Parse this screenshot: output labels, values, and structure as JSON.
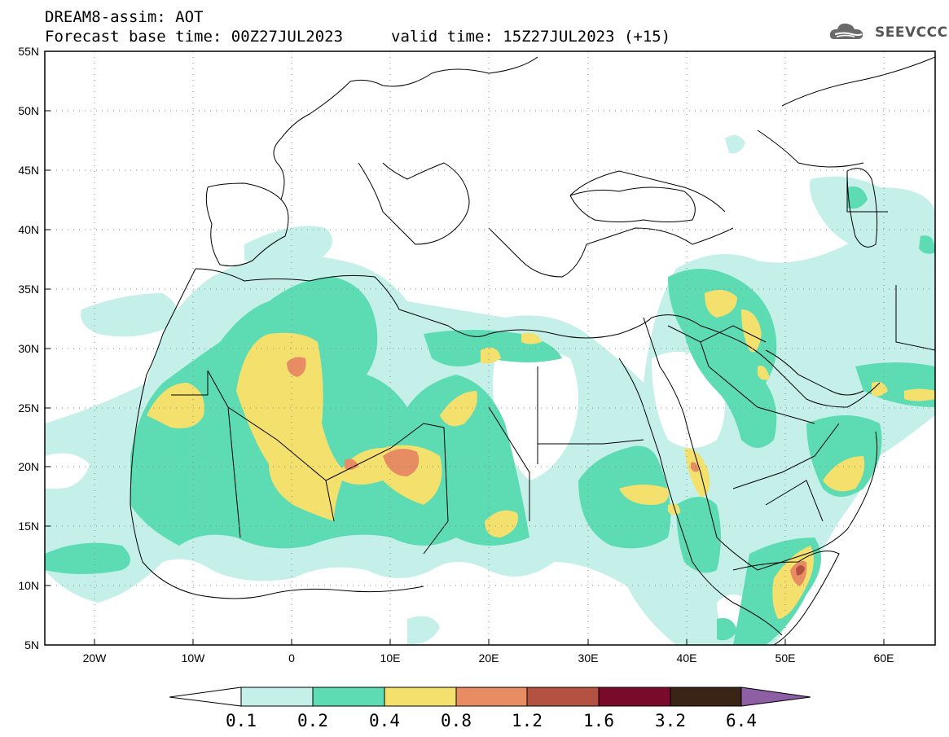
{
  "header": {
    "title": "DREAM8-assim: AOT",
    "base_time": "Forecast base time: 00Z27JUL2023",
    "valid_time": "valid time: 15Z27JUL2023 (+15)"
  },
  "logo": {
    "text": "SEEVCCC",
    "icon": "cloud-logo-icon"
  },
  "map": {
    "lat_labels": [
      "55N",
      "50N",
      "45N",
      "40N",
      "35N",
      "30N",
      "25N",
      "20N",
      "15N",
      "10N",
      "5N"
    ],
    "lon_labels": [
      "20W",
      "10W",
      "0",
      "10E",
      "20E",
      "30E",
      "40E",
      "50E",
      "60E"
    ],
    "lat_range": [
      5,
      55
    ],
    "lon_range": [
      -25,
      65
    ],
    "projection": "lat-lon",
    "grid": "dotted"
  },
  "colorbar": {
    "labels": [
      "0.1",
      "0.2",
      "0.4",
      "0.8",
      "1.2",
      "1.6",
      "3.2",
      "6.4"
    ],
    "colors": [
      "#ffffff",
      "#c5f0ea",
      "#5ddcb3",
      "#f4e06d",
      "#e88d63",
      "#b35240",
      "#7a0a2a",
      "#3a2416",
      "#8e5fa5"
    ]
  },
  "levels_colors": {
    "c01": "#c5f0ea",
    "c02": "#5ddcb3",
    "c04": "#f4e06d",
    "c08": "#e88d63",
    "c12": "#b35240"
  }
}
